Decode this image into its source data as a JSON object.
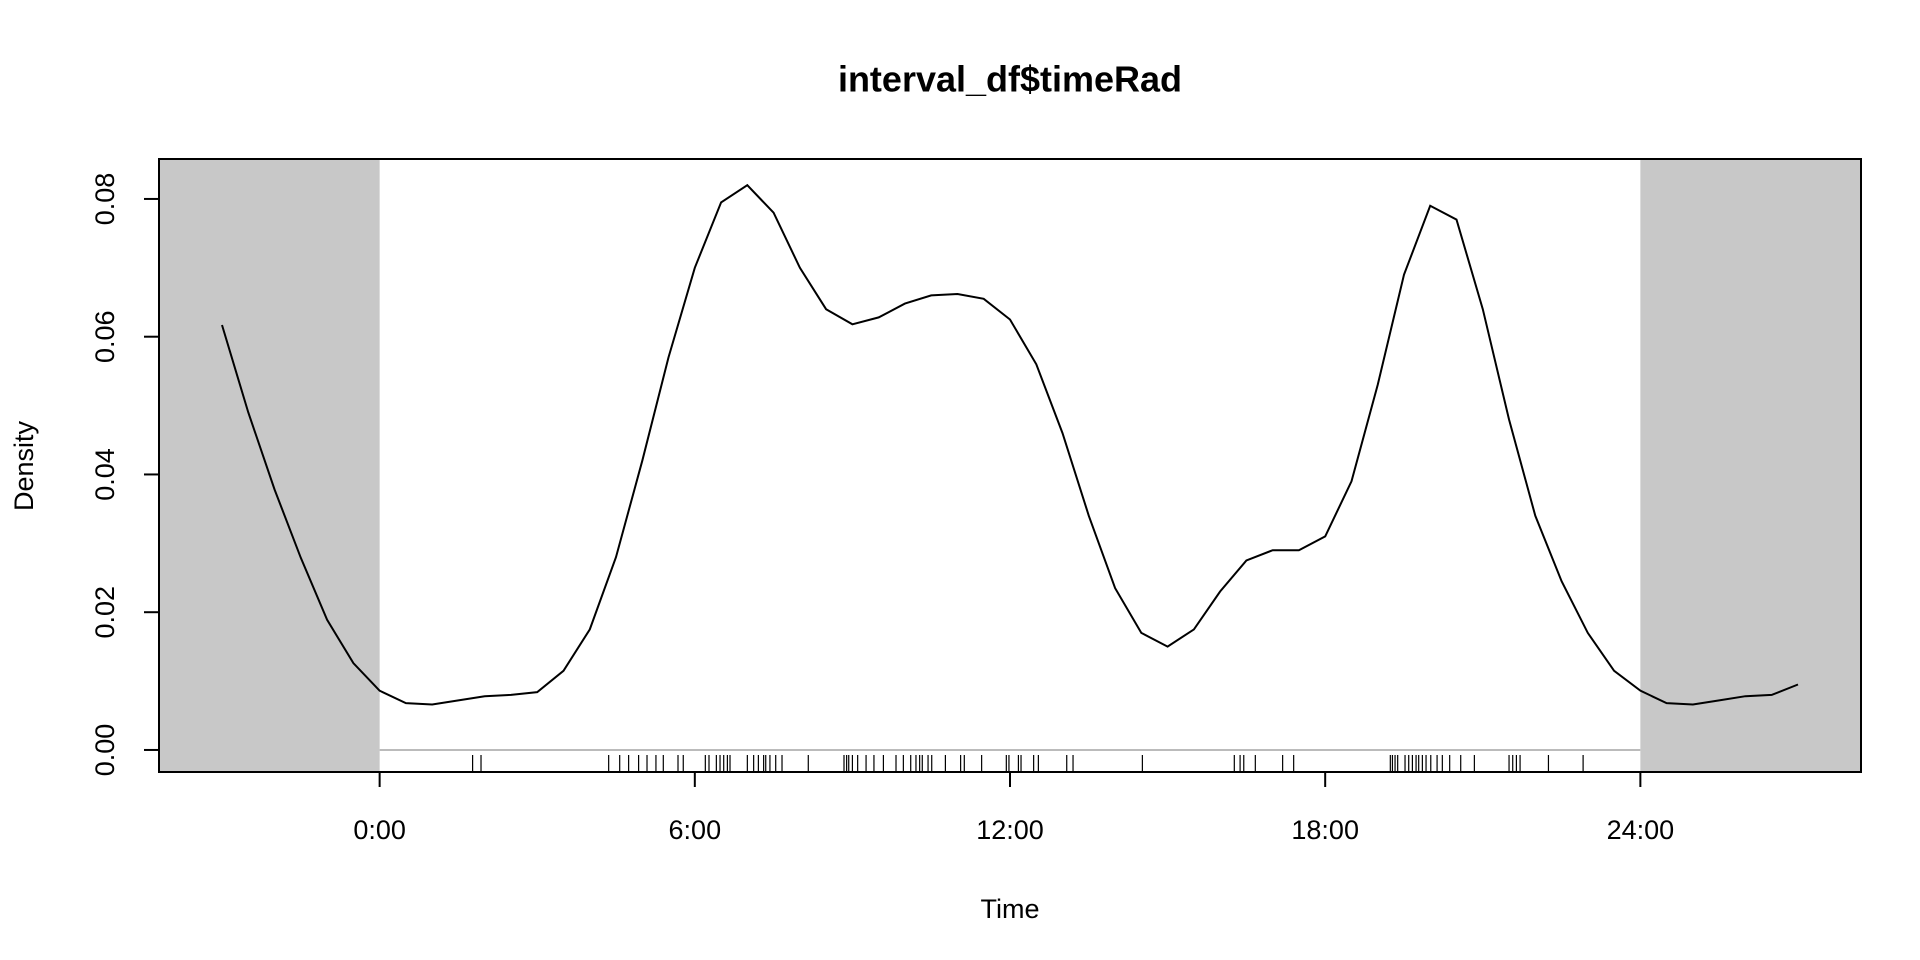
{
  "chart_data": {
    "type": "density",
    "title": "interval_df$timeRad",
    "xlabel": "Time",
    "ylabel": "Density",
    "xlim": [
      -4.2,
      28.2
    ],
    "ylim": [
      -0.0032,
      0.0858
    ],
    "xticks": [
      {
        "value": 0,
        "label": "0:00"
      },
      {
        "value": 6,
        "label": "6:00"
      },
      {
        "value": 12,
        "label": "12:00"
      },
      {
        "value": 18,
        "label": "18:00"
      },
      {
        "value": 24,
        "label": "24:00"
      }
    ],
    "yticks": [
      {
        "value": 0,
        "label": "0.00"
      },
      0.02,
      0.04,
      0.06,
      0.08
    ],
    "color": "#000000",
    "shade_color": "#c8c8c8",
    "x": [
      -3,
      -2.5,
      -2,
      -1.5,
      -1,
      -0.5,
      0,
      0.5,
      1,
      1.5,
      2,
      2.5,
      3,
      3.5,
      4,
      4.5,
      5,
      5.5,
      6,
      6.5,
      7,
      7.5,
      8,
      8.5,
      9,
      9.5,
      10,
      10.5,
      11,
      11.5,
      12,
      12.5,
      13,
      13.5,
      14,
      14.5,
      15,
      15.5,
      16,
      16.5,
      17,
      17.5,
      18,
      18.5,
      19,
      19.5,
      20,
      20.5,
      21,
      21.5,
      22,
      22.5,
      23,
      23.5,
      24,
      24.5,
      25,
      25.5,
      26,
      26.5,
      27
    ],
    "values": [
      0.0617,
      0.049,
      0.0378,
      0.0279,
      0.0189,
      0.0126,
      0.0086,
      0.0068,
      0.0066,
      0.0072,
      0.0078,
      0.008,
      0.0084,
      0.0115,
      0.0175,
      0.028,
      0.042,
      0.057,
      0.07,
      0.0795,
      0.082,
      0.078,
      0.07,
      0.064,
      0.0618,
      0.0628,
      0.0648,
      0.066,
      0.0662,
      0.0655,
      0.0625,
      0.056,
      0.046,
      0.034,
      0.0235,
      0.017,
      0.015,
      0.0175,
      0.023,
      0.0275,
      0.029,
      0.029,
      0.031,
      0.039,
      0.053,
      0.069,
      0.079,
      0.077,
      0.064,
      0.048,
      0.034,
      0.0245,
      0.017,
      0.0115,
      0.0086,
      0.0068,
      0.0066,
      0.0072,
      0.0078,
      0.008,
      0.0095
    ],
    "rug": [
      1.77,
      1.93,
      4.36,
      4.57,
      4.74,
      4.93,
      5.09,
      5.26,
      5.4,
      5.68,
      5.78,
      6.2,
      6.27,
      6.41,
      6.48,
      6.55,
      6.62,
      6.67,
      7.0,
      7.12,
      7.21,
      7.31,
      7.35,
      7.43,
      7.54,
      7.66,
      8.16,
      8.84,
      8.89,
      8.93,
      9.0,
      9.1,
      9.26,
      9.41,
      9.59,
      9.83,
      9.97,
      10.11,
      10.21,
      10.28,
      10.33,
      10.44,
      10.51,
      10.77,
      11.06,
      11.13,
      11.46,
      11.93,
      11.98,
      12.16,
      12.21,
      12.45,
      12.54,
      13.08,
      13.2,
      14.52,
      16.27,
      16.38,
      16.45,
      16.67,
      17.19,
      17.4,
      19.24,
      19.28,
      19.33,
      19.38,
      19.52,
      19.59,
      19.66,
      19.73,
      19.78,
      19.85,
      19.92,
      20.01,
      20.13,
      20.23,
      20.37,
      20.58,
      20.84,
      21.5,
      21.57,
      21.64,
      21.71,
      22.25,
      22.91
    ]
  }
}
